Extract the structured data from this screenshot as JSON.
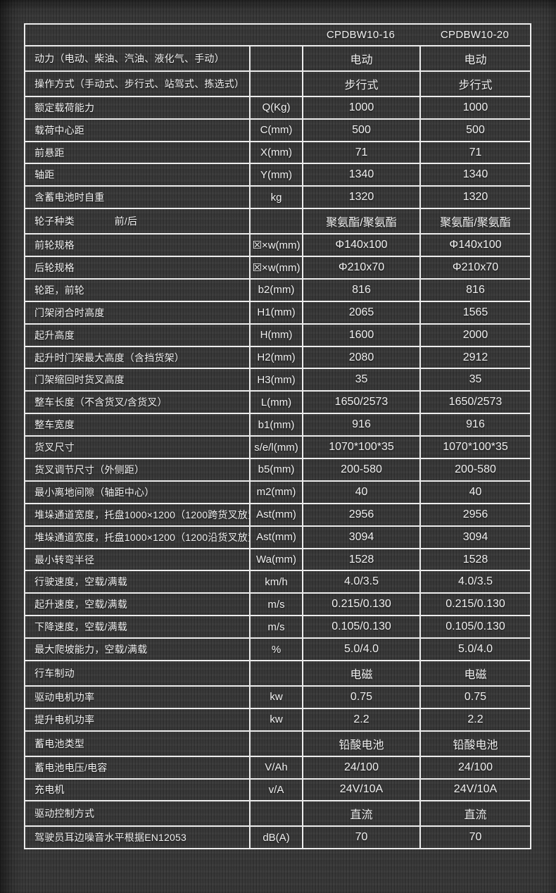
{
  "table": {
    "models": [
      "CPDBW10-16",
      "CPDBW10-20"
    ],
    "rows": [
      {
        "label": "动力（电动、柴油、汽油、液化气、手动）",
        "unit": "",
        "v1": "电动",
        "v2": "电动"
      },
      {
        "label": "操作方式（手动式、步行式、站驾式、拣选式）",
        "unit": "",
        "v1": "步行式",
        "v2": "步行式"
      },
      {
        "label": "额定载荷能力",
        "unit": "Q(Kg)",
        "v1": "1000",
        "v2": "1000"
      },
      {
        "label": "载荷中心距",
        "unit": "C(mm)",
        "v1": "500",
        "v2": "500"
      },
      {
        "label": "前悬距",
        "unit": "X(mm)",
        "v1": "71",
        "v2": "71"
      },
      {
        "label": "轴距",
        "unit": "Y(mm)",
        "v1": "1340",
        "v2": "1340"
      },
      {
        "label": "含蓄电池时自重",
        "unit": "kg",
        "v1": "1320",
        "v2": "1320"
      },
      {
        "label": "轮子种类　　　　前/后",
        "unit": "",
        "v1": "聚氨酯/聚氨酯",
        "v2": "聚氨酯/聚氨酯"
      },
      {
        "label": "前轮规格",
        "unit": "☒×w(mm)",
        "v1": "Φ140x100",
        "v2": "Φ140x100"
      },
      {
        "label": "后轮规格",
        "unit": "☒×w(mm)",
        "v1": "Φ210x70",
        "v2": "Φ210x70"
      },
      {
        "label": "轮距，前轮",
        "unit": "b2(mm)",
        "v1": "816",
        "v2": "816"
      },
      {
        "label": "门架闭合时高度",
        "unit": "H1(mm)",
        "v1": "2065",
        "v2": "1565"
      },
      {
        "label": "起升高度",
        "unit": "H(mm)",
        "v1": "1600",
        "v2": "2000"
      },
      {
        "label": "起升时门架最大高度（含挡货架）",
        "unit": "H2(mm)",
        "v1": "2080",
        "v2": "2912"
      },
      {
        "label": "门架缩回时货叉高度",
        "unit": "H3(mm)",
        "v1": "35",
        "v2": "35"
      },
      {
        "label": "整车长度（不含货叉/含货叉）",
        "unit": "L(mm)",
        "v1": "1650/2573",
        "v2": "1650/2573"
      },
      {
        "label": "整车宽度",
        "unit": "b1(mm)",
        "v1": "916",
        "v2": "916"
      },
      {
        "label": "货叉尺寸",
        "unit": "s/e/l(mm)",
        "v1": "1070*100*35",
        "v2": "1070*100*35"
      },
      {
        "label": "货叉调节尺寸（外侧距）",
        "unit": "b5(mm)",
        "v1": "200-580",
        "v2": "200-580"
      },
      {
        "label": "最小离地间隙（轴距中心）",
        "unit": "m2(mm)",
        "v1": "40",
        "v2": "40"
      },
      {
        "label": "堆垛通道宽度，托盘1000×1200（1200跨货叉放置）",
        "unit": "Ast(mm)",
        "v1": "2956",
        "v2": "2956"
      },
      {
        "label": "堆垛通道宽度，托盘1000×1200（1200沿货叉放置）",
        "unit": "Ast(mm)",
        "v1": "3094",
        "v2": "3094"
      },
      {
        "label": "最小转弯半径",
        "unit": "Wa(mm)",
        "v1": "1528",
        "v2": "1528"
      },
      {
        "label": "行驶速度，空载/满载",
        "unit": "km/h",
        "v1": "4.0/3.5",
        "v2": "4.0/3.5"
      },
      {
        "label": "起升速度，空载/满载",
        "unit": "m/s",
        "v1": "0.215/0.130",
        "v2": "0.215/0.130"
      },
      {
        "label": "下降速度，空载/满载",
        "unit": "m/s",
        "v1": "0.105/0.130",
        "v2": "0.105/0.130"
      },
      {
        "label": "最大爬坡能力，空载/满载",
        "unit": "%",
        "v1": "5.0/4.0",
        "v2": "5.0/4.0"
      },
      {
        "label": "行车制动",
        "unit": "",
        "v1": "电磁",
        "v2": "电磁"
      },
      {
        "label": "驱动电机功率",
        "unit": "kw",
        "v1": "0.75",
        "v2": "0.75"
      },
      {
        "label": "提升电机功率",
        "unit": "kw",
        "v1": "2.2",
        "v2": "2.2"
      },
      {
        "label": "蓄电池类型",
        "unit": "",
        "v1": "铅酸电池",
        "v2": "铅酸电池"
      },
      {
        "label": "蓄电池电压/电容",
        "unit": "V/Ah",
        "v1": "24/100",
        "v2": "24/100"
      },
      {
        "label": "充电机",
        "unit": "v/A",
        "v1": "24V/10A",
        "v2": "24V/10A"
      },
      {
        "label": "驱动控制方式",
        "unit": "",
        "v1": "直流",
        "v2": "直流"
      },
      {
        "label": "驾驶员耳边噪音水平根据EN12053",
        "unit": "dB(A)",
        "v1": "70",
        "v2": "70"
      }
    ]
  },
  "colors": {
    "background": "#3a3a3a",
    "grid_border": "#ececec",
    "text": "#f0f0f0"
  }
}
